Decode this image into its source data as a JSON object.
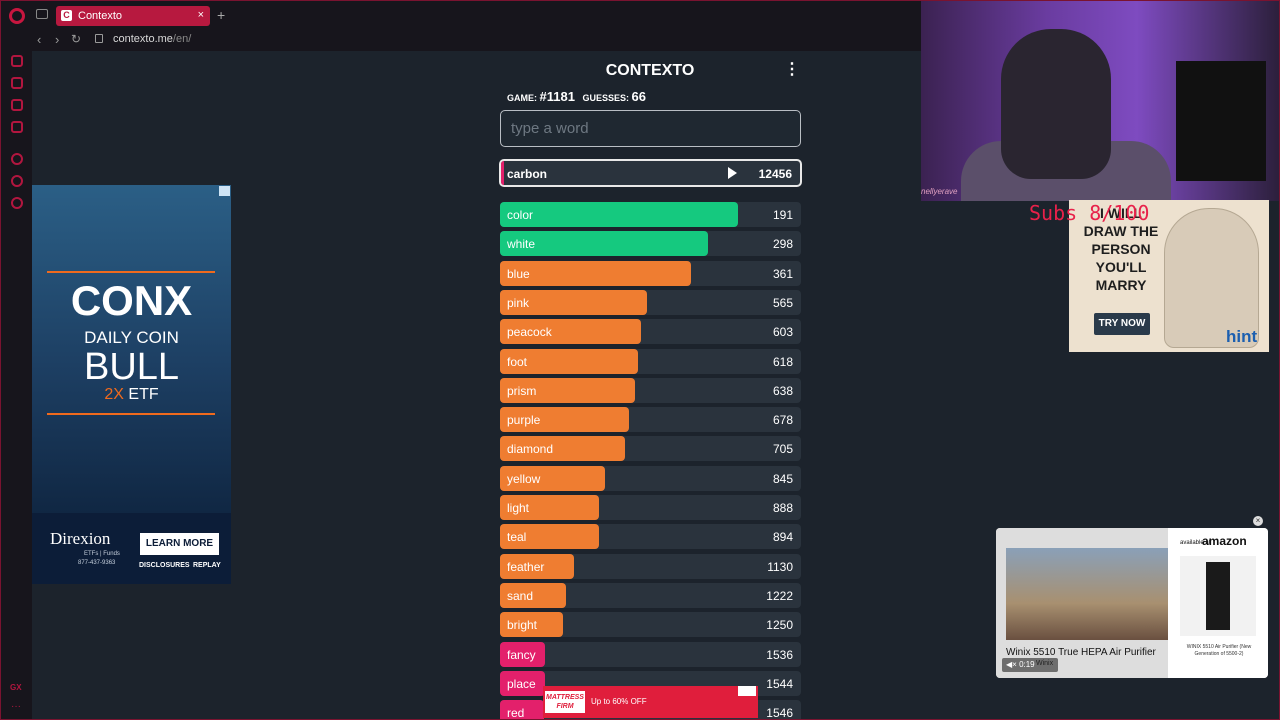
{
  "browser": {
    "tab_title": "Contexto",
    "tab_favicon": "C",
    "new_tab": "+",
    "close": "×",
    "url_host": "contexto.me",
    "url_path": "/en/",
    "back": "‹",
    "forward": "›",
    "reload": "↻"
  },
  "game": {
    "title": "CONTEXTO",
    "menu": "⋮",
    "game_label": "GAME:",
    "game_number": "#1181",
    "guesses_label": "GUESSES:",
    "guesses_count": "66",
    "input_placeholder": "type a word",
    "last_guess": {
      "word": "carbon",
      "rank": "12456",
      "level": 0.005
    }
  },
  "guesses": [
    {
      "word": "color",
      "rank": "191",
      "level": 0.79,
      "color": "#15c97f"
    },
    {
      "word": "white",
      "rank": "298",
      "level": 0.69,
      "color": "#15c97f"
    },
    {
      "word": "blue",
      "rank": "361",
      "level": 0.635,
      "color": "#ef7d31"
    },
    {
      "word": "pink",
      "rank": "565",
      "level": 0.49,
      "color": "#ef7d31"
    },
    {
      "word": "peacock",
      "rank": "603",
      "level": 0.47,
      "color": "#ef7d31"
    },
    {
      "word": "foot",
      "rank": "618",
      "level": 0.46,
      "color": "#ef7d31"
    },
    {
      "word": "prism",
      "rank": "638",
      "level": 0.45,
      "color": "#ef7d31"
    },
    {
      "word": "purple",
      "rank": "678",
      "level": 0.43,
      "color": "#ef7d31"
    },
    {
      "word": "diamond",
      "rank": "705",
      "level": 0.415,
      "color": "#ef7d31"
    },
    {
      "word": "yellow",
      "rank": "845",
      "level": 0.35,
      "color": "#ef7d31"
    },
    {
      "word": "light",
      "rank": "888",
      "level": 0.33,
      "color": "#ef7d31"
    },
    {
      "word": "teal",
      "rank": "894",
      "level": 0.33,
      "color": "#ef7d31"
    },
    {
      "word": "feather",
      "rank": "1130",
      "level": 0.245,
      "color": "#ef7d31"
    },
    {
      "word": "sand",
      "rank": "1222",
      "level": 0.22,
      "color": "#ef7d31"
    },
    {
      "word": "bright",
      "rank": "1250",
      "level": 0.21,
      "color": "#ef7d31"
    },
    {
      "word": "fancy",
      "rank": "1536",
      "level": 0.15,
      "color": "#e3206b"
    },
    {
      "word": "place",
      "rank": "1544",
      "level": 0.148,
      "color": "#e3206b"
    },
    {
      "word": "red",
      "rank": "1546",
      "level": 0.145,
      "color": "#e3206b"
    }
  ],
  "ads": {
    "left": {
      "headline": "CONX",
      "line2": "DAILY COIN",
      "line3": "BULL",
      "lev": "2X",
      "etf": "ETF",
      "brand": "Direxion",
      "brand_sub": "ETFs | Funds",
      "phone": "877-437-9363",
      "cta": "LEARN MORE",
      "disclosures": "DISCLOSURES",
      "replay": "REPLAY"
    },
    "hint": {
      "text": "I WILL DRAW THE PERSON YOU'LL MARRY",
      "cta": "TRY NOW",
      "logo": "hint"
    },
    "amazon": {
      "title": "Winix 5510 True HEPA Air Purifier",
      "by": "Winix",
      "time": "0:19",
      "available": "available at",
      "logo": "amazon",
      "desc": "WINIX 5510 Air Purifier (New Generation of 5500-2)",
      "close": "×"
    },
    "bottom": {
      "logo": "MATTRESS FIRM",
      "text": "Up to 60% OFF"
    }
  },
  "overlay": {
    "subs": "Subs 8/100",
    "caption": "nellyerave",
    "sidebar_gx": "GX",
    "sidebar_more": "···"
  }
}
